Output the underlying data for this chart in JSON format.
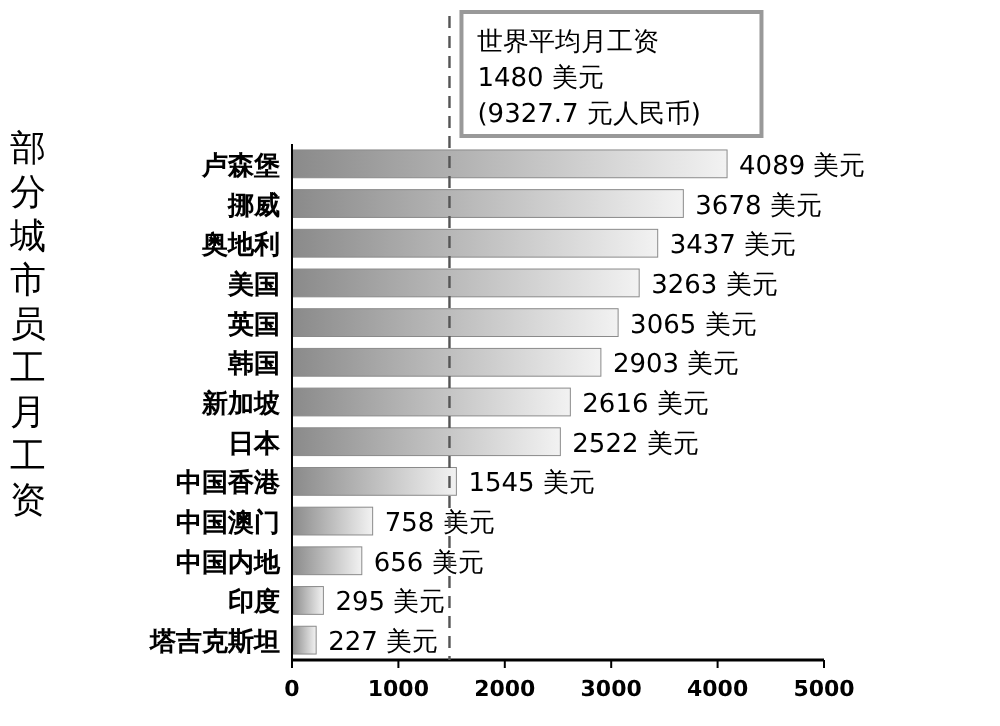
{
  "chart_data": {
    "type": "bar",
    "orientation": "horizontal",
    "ylabel": "部分城市员工月工资",
    "categories": [
      "卢森堡",
      "挪威",
      "奥地利",
      "美国",
      "英国",
      "韩国",
      "新加坡",
      "日本",
      "中国香港",
      "中国澳门",
      "中国内地",
      "印度",
      "塔吉克斯坦"
    ],
    "values": [
      4089,
      3678,
      3437,
      3263,
      3065,
      2903,
      2616,
      2522,
      1545,
      758,
      656,
      295,
      227
    ],
    "value_labels": [
      "4089 美元",
      "3678 美元",
      "3437 美元",
      "3263 美元",
      "3065 美元",
      "2903 美元",
      "2616 美元",
      "2522 美元",
      "1545 美元",
      "758 美元",
      "656 美元",
      "295 美元",
      "227 美元"
    ],
    "color": "#8a8a8a",
    "xlim": [
      0,
      5000
    ],
    "xticks": [
      0,
      1000,
      2000,
      3000,
      4000,
      5000
    ],
    "ref_lines": [
      {
        "axis": "x",
        "value": 1480,
        "line_style": "dashed",
        "color": "#555555",
        "label": "世界平均月工资\n1480 美元\n(9327.7 元人民币)"
      }
    ]
  }
}
